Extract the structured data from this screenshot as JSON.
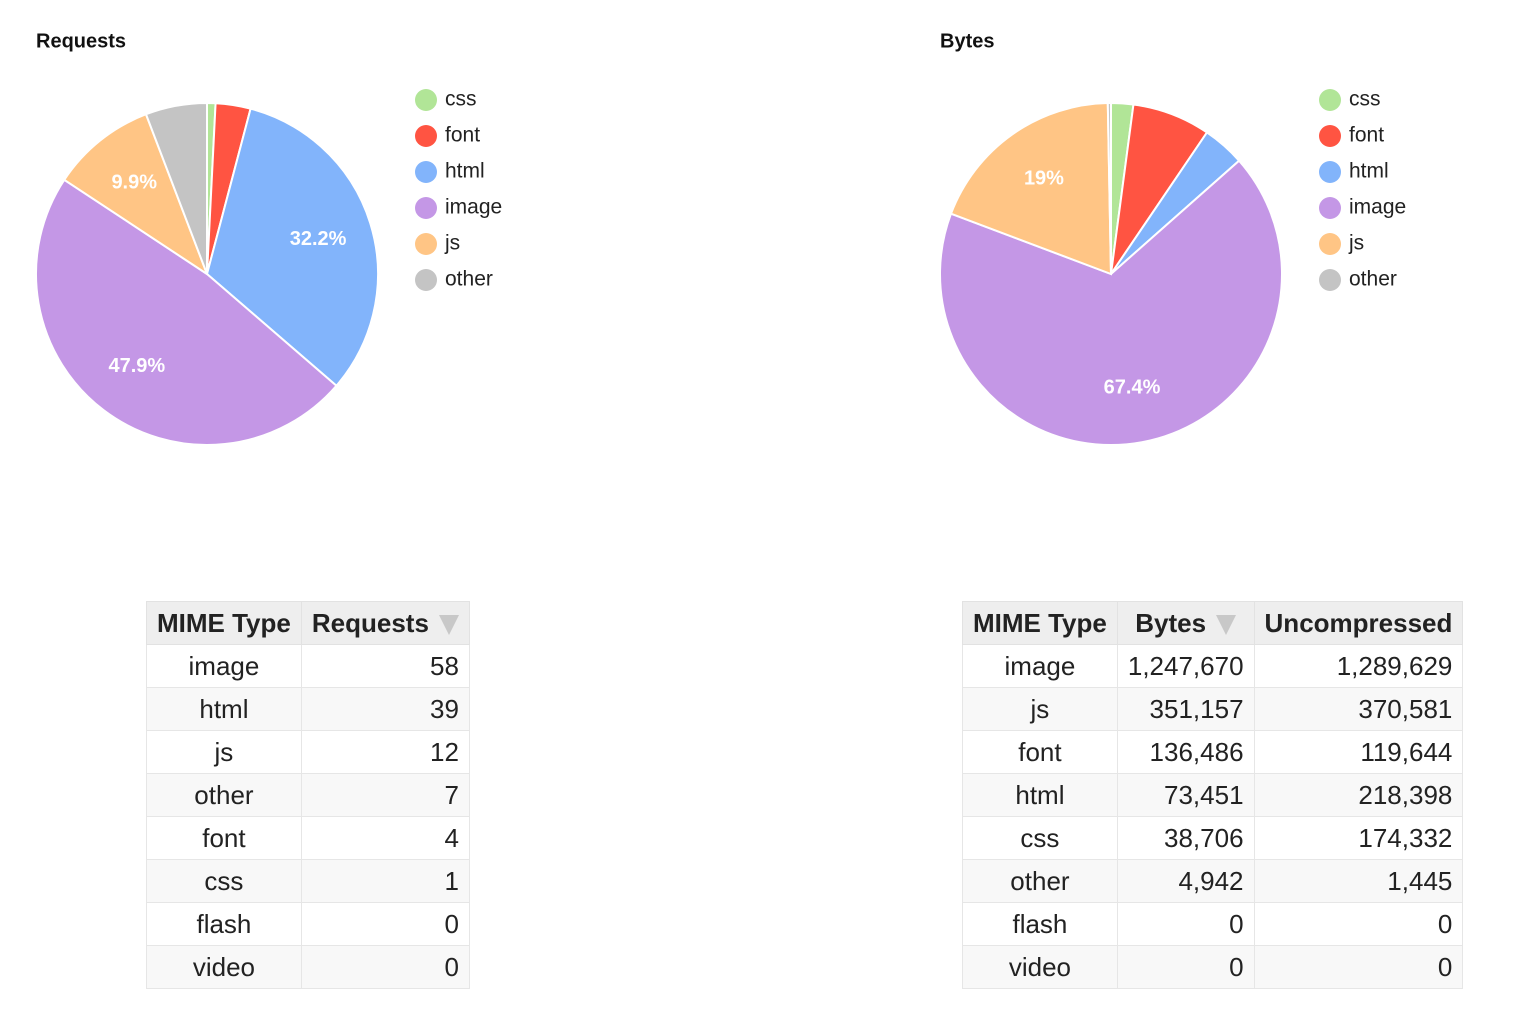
{
  "chart_data": [
    {
      "type": "pie",
      "title": "Requests",
      "categories": [
        "css",
        "font",
        "html",
        "image",
        "js",
        "other"
      ],
      "values": [
        0.8,
        3.3,
        32.2,
        47.9,
        9.9,
        5.8
      ],
      "value_labels": [
        null,
        null,
        "32.2%",
        "47.9%",
        "9.9%",
        null
      ],
      "colors": [
        "#b1e597",
        "#ff5442",
        "#82b4fb",
        "#c497e6",
        "#ffc585",
        "#c4c4c4"
      ]
    },
    {
      "type": "pie",
      "title": "Bytes",
      "categories": [
        "css",
        "font",
        "html",
        "image",
        "js",
        "other"
      ],
      "values": [
        2.1,
        7.4,
        4.0,
        67.4,
        19.0,
        0.3
      ],
      "value_labels": [
        null,
        null,
        null,
        "67.4%",
        "19%",
        null
      ],
      "colors": [
        "#b1e597",
        "#ff5442",
        "#82b4fb",
        "#c497e6",
        "#ffc585",
        "#c4c4c4"
      ]
    }
  ],
  "tables": [
    {
      "columns": [
        "MIME Type",
        "Requests"
      ],
      "rows": [
        [
          "image",
          "58"
        ],
        [
          "html",
          "39"
        ],
        [
          "js",
          "12"
        ],
        [
          "other",
          "7"
        ],
        [
          "font",
          "4"
        ],
        [
          "css",
          "1"
        ],
        [
          "flash",
          "0"
        ],
        [
          "video",
          "0"
        ]
      ]
    },
    {
      "columns": [
        "MIME Type",
        "Bytes",
        "Uncompressed"
      ],
      "rows": [
        [
          "image",
          "1,247,670",
          "1,289,629"
        ],
        [
          "js",
          "351,157",
          "370,581"
        ],
        [
          "font",
          "136,486",
          "119,644"
        ],
        [
          "html",
          "73,451",
          "218,398"
        ],
        [
          "css",
          "38,706",
          "174,332"
        ],
        [
          "other",
          "4,942",
          "1,445"
        ],
        [
          "flash",
          "0",
          "0"
        ],
        [
          "video",
          "0",
          "0"
        ]
      ]
    }
  ]
}
